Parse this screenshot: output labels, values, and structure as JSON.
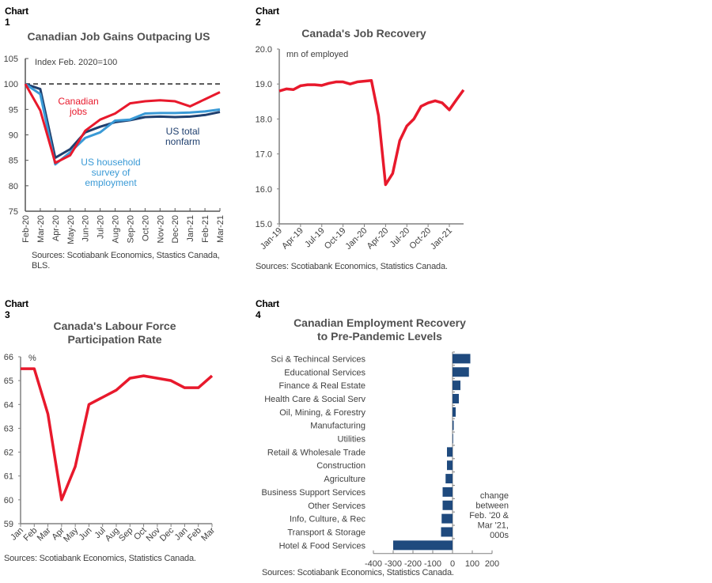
{
  "panels": [
    {
      "number": "Chart 1",
      "source": "Sources: Scotiabank Economics, Stastics Canada, BLS."
    },
    {
      "number": "Chart 2",
      "source": "Sources: Scotiabank Economics, Statistics Canada."
    },
    {
      "number": "Chart 3",
      "source": "Sources: Scotiabank Economics, Statistics Canada."
    },
    {
      "number": "Chart 4",
      "source": "Sources: Scotiabank Economics, Statistics Canada."
    }
  ],
  "colors": {
    "canada_red": "#e8192c",
    "us_nonfarm_navy": "#1f3f6e",
    "us_household_blue": "#3a9ad6",
    "bar_navy": "#1f4a7e",
    "axis_gray": "#808080",
    "ref_line_gray": "#555555"
  },
  "chart_data": [
    {
      "type": "line",
      "title": "Canadian Job Gains Outpacing US",
      "annotation": "Index Feb. 2020=100",
      "xlabel": "",
      "ylabel": "",
      "ylim": [
        75,
        105
      ],
      "yticks": [
        "75",
        "80",
        "85",
        "90",
        "95",
        "100",
        "105"
      ],
      "x": [
        "Feb-20",
        "Mar-20",
        "Apr-20",
        "May-20",
        "Jun-20",
        "Jul-20",
        "Aug-20",
        "Sep-20",
        "Oct-20",
        "Nov-20",
        "Dec-20",
        "Jan-21",
        "Feb-21",
        "Mar-21"
      ],
      "reference_line": 100,
      "grid": false,
      "series": [
        {
          "name": "Canadian jobs",
          "label_lines": [
            "Canadian",
            "jobs"
          ],
          "color_key": "canada_red",
          "values": [
            100,
            94.8,
            84.5,
            86.0,
            90.8,
            93.0,
            94.2,
            96.2,
            96.6,
            96.8,
            96.6,
            95.6,
            97.0,
            98.4
          ]
        },
        {
          "name": "US total nonfarm",
          "label_lines": [
            "US total",
            "nonfarm"
          ],
          "color_key": "us_nonfarm_navy",
          "values": [
            100,
            99.0,
            85.5,
            87.2,
            90.5,
            91.6,
            92.5,
            92.9,
            93.5,
            93.6,
            93.5,
            93.6,
            93.9,
            94.5
          ]
        },
        {
          "name": "US household survey of employment",
          "label_lines": [
            "US household",
            "survey of",
            "employment"
          ],
          "color_key": "us_household_blue",
          "values": [
            100,
            98.0,
            84.2,
            86.6,
            89.4,
            90.5,
            92.8,
            93.0,
            94.2,
            94.3,
            94.3,
            94.4,
            94.6,
            95.0
          ]
        }
      ]
    },
    {
      "type": "line",
      "title": "Canada's Job Recovery",
      "annotation": "mn of employed",
      "xlabel": "",
      "ylabel": "",
      "ylim": [
        15.0,
        20.0
      ],
      "yticks": [
        "15.0",
        "16.0",
        "17.0",
        "18.0",
        "19.0",
        "20.0"
      ],
      "xticks": [
        "Jan-19",
        "Apr-19",
        "Jul-19",
        "Oct-19",
        "Jan-20",
        "Apr-20",
        "Jul-20",
        "Oct-20",
        "Jan-21"
      ],
      "x": [
        "Jan-19",
        "Feb-19",
        "Mar-19",
        "Apr-19",
        "May-19",
        "Jun-19",
        "Jul-19",
        "Aug-19",
        "Sep-19",
        "Oct-19",
        "Nov-19",
        "Dec-19",
        "Jan-20",
        "Feb-20",
        "Mar-20",
        "Apr-20",
        "May-20",
        "Jun-20",
        "Jul-20",
        "Aug-20",
        "Sep-20",
        "Oct-20",
        "Nov-20",
        "Dec-20",
        "Jan-21",
        "Feb-21",
        "Mar-21"
      ],
      "grid": false,
      "series": [
        {
          "name": "Employment",
          "color_key": "canada_red",
          "values": [
            18.8,
            18.86,
            18.84,
            18.95,
            18.98,
            18.98,
            18.96,
            19.02,
            19.06,
            19.06,
            19.0,
            19.06,
            19.08,
            19.1,
            18.1,
            16.12,
            16.44,
            17.38,
            17.8,
            18.0,
            18.36,
            18.46,
            18.52,
            18.46,
            18.26,
            18.55,
            18.83
          ]
        }
      ]
    },
    {
      "type": "line",
      "title": "Canada's Labour Force Participation Rate",
      "title_lines": [
        "Canada's Labour Force",
        "Participation Rate"
      ],
      "annotation": "%",
      "xlabel": "",
      "ylabel": "",
      "ylim": [
        59,
        66
      ],
      "yticks": [
        "59",
        "60",
        "61",
        "62",
        "63",
        "64",
        "65",
        "66"
      ],
      "x": [
        "Jan",
        "Feb",
        "Mar",
        "Apr",
        "May",
        "Jun",
        "Jul",
        "Aug",
        "Sep",
        "Oct",
        "Nov",
        "Dec",
        "Jan",
        "Feb",
        "Mar"
      ],
      "grid": false,
      "series": [
        {
          "name": "Participation rate",
          "color_key": "canada_red",
          "values": [
            65.5,
            65.5,
            63.6,
            60.0,
            61.4,
            64.0,
            64.3,
            64.6,
            65.1,
            65.2,
            65.1,
            65.0,
            64.7,
            64.7,
            65.2
          ]
        }
      ]
    },
    {
      "type": "bar",
      "orientation": "horizontal",
      "title": "Canadian Employment Recovery to Pre-Pandemic Levels",
      "title_lines": [
        "Canadian Employment  Recovery",
        "to Pre-Pandemic Levels"
      ],
      "annotation_lines": [
        "change",
        "between",
        "Feb. '20 &",
        "Mar '21,",
        "000s"
      ],
      "xlim": [
        -400,
        200
      ],
      "xticks": [
        "-400",
        "-300",
        "-200",
        "-100",
        "0",
        "100",
        "200"
      ],
      "grid": false,
      "categories": [
        "Sci & Techincal Services",
        "Educational Services",
        "Finance & Real Estate",
        "Health Care & Social Serv",
        "Oil, Mining, & Forestry",
        "Manufacturing",
        "Utilities",
        "Retail & Wholesale Trade",
        "Construction",
        "Agriculture",
        "Business Support Services",
        "Other Services",
        "Info, Culture, & Rec",
        "Transport & Storage",
        "Hotel & Food Services"
      ],
      "values": [
        90,
        83,
        40,
        32,
        16,
        6,
        1,
        -28,
        -28,
        -35,
        -50,
        -50,
        -55,
        -58,
        -300
      ],
      "color_key": "bar_navy"
    }
  ]
}
